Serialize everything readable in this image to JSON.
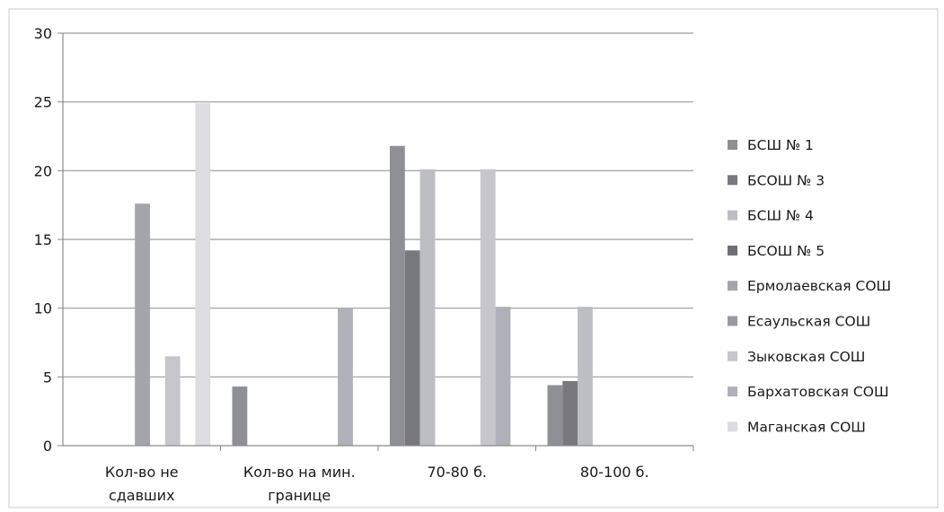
{
  "chart_data": {
    "type": "bar",
    "categories": [
      [
        "Кол-во не",
        "сдавших"
      ],
      [
        "Кол-во на мин.",
        "границе"
      ],
      [
        "70-80 б."
      ],
      [
        "80-100 б."
      ]
    ],
    "series": [
      {
        "name": "БСШ № 1",
        "color": "#8f8f96",
        "values": [
          0,
          4.3,
          21.8,
          4.4
        ]
      },
      {
        "name": "БСОШ № 3",
        "color": "#78787e",
        "values": [
          0,
          0,
          14.2,
          4.7
        ]
      },
      {
        "name": "БСШ № 4",
        "color": "#bdbdc4",
        "values": [
          0,
          0,
          20.1,
          10.1
        ]
      },
      {
        "name": "БСОШ № 5",
        "color": "#6e6e74",
        "values": [
          0,
          0,
          0,
          0
        ]
      },
      {
        "name": "Ермолаевская СОШ",
        "color": "#a4a4ac",
        "values": [
          17.6,
          0,
          0,
          0
        ]
      },
      {
        "name": "Есаульская СОШ",
        "color": "#9a9aa2",
        "values": [
          0,
          0,
          0,
          0
        ]
      },
      {
        "name": "Зыковская СОШ",
        "color": "#c6c6cc",
        "values": [
          6.5,
          0,
          20.1,
          0
        ]
      },
      {
        "name": "Бархатовская СОШ",
        "color": "#b0b0b8",
        "values": [
          0,
          10.0,
          10.1,
          0
        ]
      },
      {
        "name": "Маганская СОШ",
        "color": "#dcdce2",
        "values": [
          24.9,
          0,
          0,
          0
        ]
      }
    ],
    "y_ticks": [
      "0",
      "5",
      "10",
      "15",
      "20",
      "25",
      "30"
    ],
    "ylim": [
      0,
      30
    ],
    "grid": true,
    "legend_position": "right"
  }
}
